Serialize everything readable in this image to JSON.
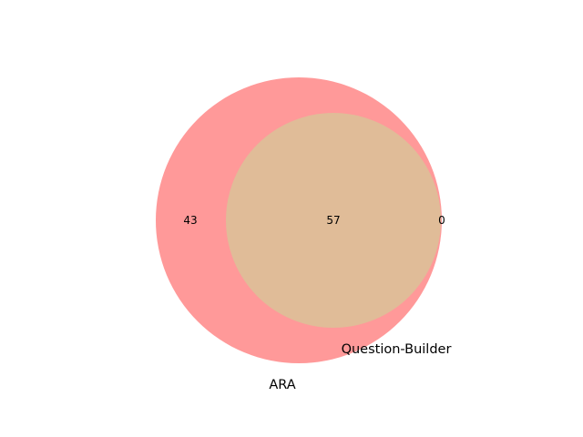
{
  "chart_data": {
    "type": "venn",
    "sets": [
      {
        "name": "ARA",
        "size": 100,
        "color": "#ff9999"
      },
      {
        "name": "Question-Builder",
        "size": 57,
        "color": "#e0bc98"
      }
    ],
    "regions": {
      "ara_only": "43",
      "both": "57",
      "question_builder_only": "0"
    },
    "overlap_color": "#e0bc98"
  }
}
